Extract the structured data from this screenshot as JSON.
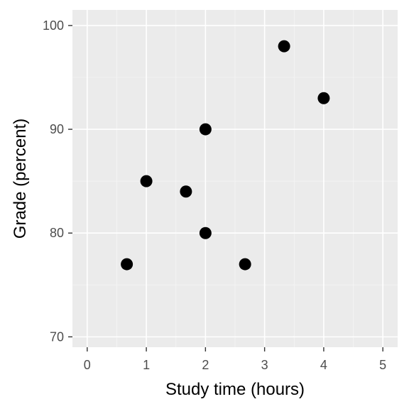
{
  "chart_data": {
    "type": "scatter",
    "xlabel": "Study time (hours)",
    "ylabel": "Grade (percent)",
    "xlim": [
      -0.25,
      5.25
    ],
    "ylim": [
      69,
      101.5
    ],
    "x_ticks": [
      0,
      1,
      2,
      3,
      4,
      5
    ],
    "x_tick_labels": [
      "0",
      "1",
      "2",
      "3",
      "4",
      "5"
    ],
    "y_ticks": [
      70,
      80,
      90,
      100
    ],
    "y_tick_labels": [
      "70",
      "80",
      "90",
      "100"
    ],
    "x_minor_ticks": [
      0.5,
      1.5,
      2.5,
      3.5,
      4.5
    ],
    "y_minor_ticks": [
      75,
      85,
      95
    ],
    "grid": true,
    "points": [
      {
        "x": 0.67,
        "y": 77
      },
      {
        "x": 1.0,
        "y": 85
      },
      {
        "x": 1.67,
        "y": 84
      },
      {
        "x": 2.0,
        "y": 90
      },
      {
        "x": 2.0,
        "y": 80
      },
      {
        "x": 2.67,
        "y": 77
      },
      {
        "x": 3.33,
        "y": 98
      },
      {
        "x": 4.0,
        "y": 93
      }
    ],
    "colors": {
      "panel_background": "#ebebeb",
      "grid_major": "#ffffff",
      "grid_minor": "#f5f5f5",
      "point": "#000000",
      "tick_mark": "#333333",
      "tick_label": "#4d4d4d",
      "axis_title": "#000000"
    }
  }
}
